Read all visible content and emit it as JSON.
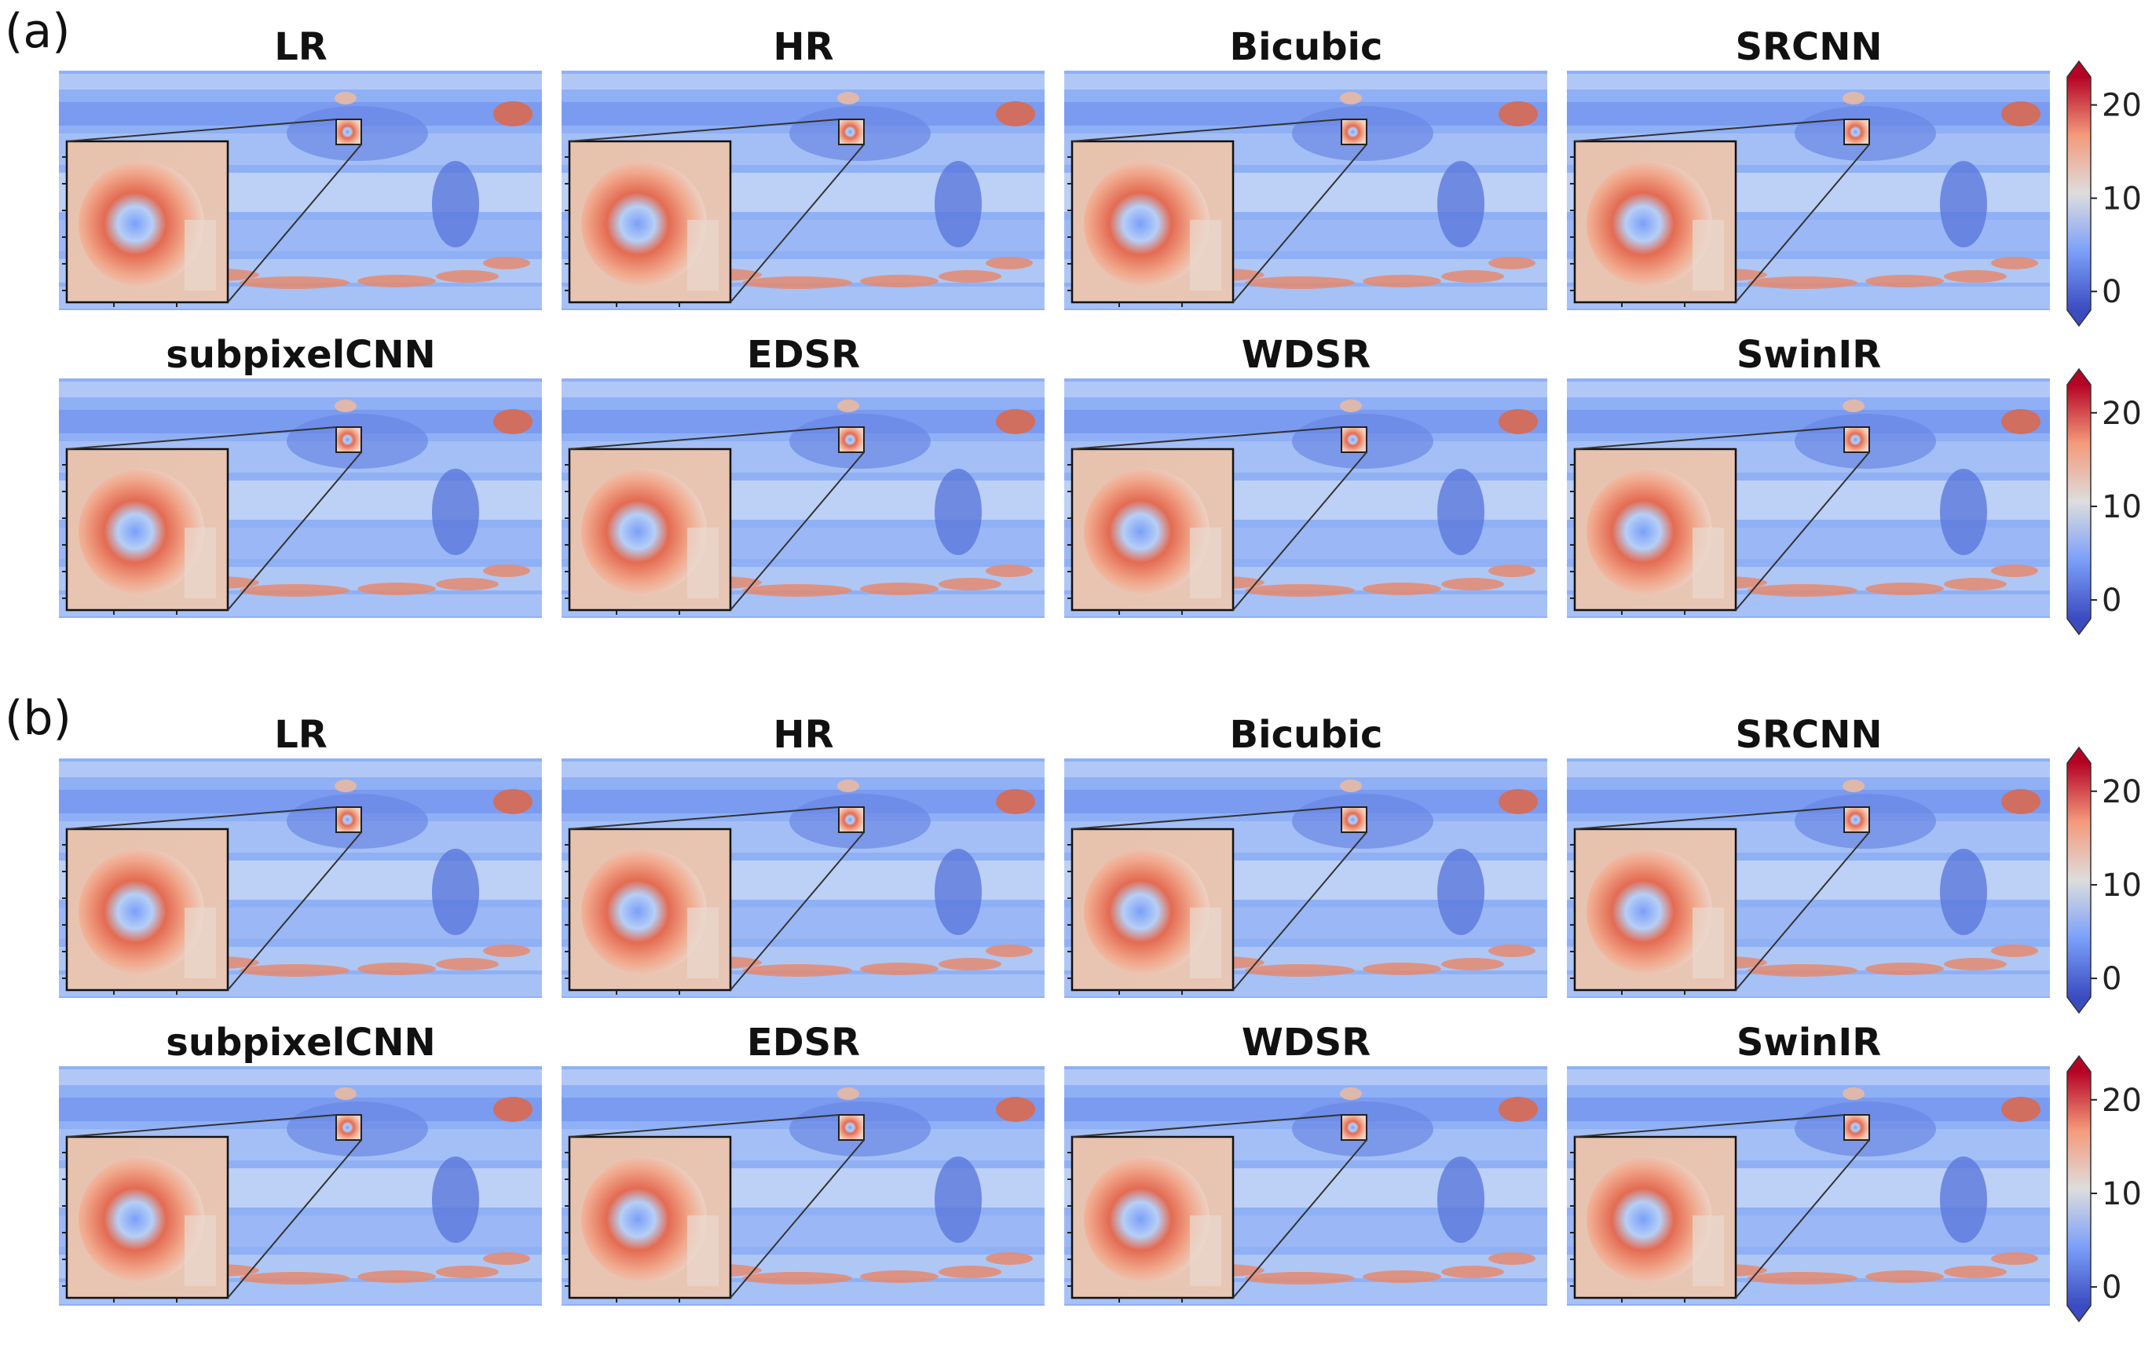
{
  "figure": {
    "panels": [
      {
        "label": "(a)",
        "rows": [
          [
            "LR",
            "HR",
            "Bicubic",
            "SRCNN"
          ],
          [
            "subpixelCNN",
            "EDSR",
            "WDSR",
            "SwinIR"
          ]
        ]
      },
      {
        "label": "(b)",
        "rows": [
          [
            "LR",
            "HR",
            "Bicubic",
            "SRCNN"
          ],
          [
            "subpixelCNN",
            "EDSR",
            "WDSR",
            "SwinIR"
          ]
        ]
      }
    ],
    "colormap": "coolwarm",
    "colors": {
      "low": "#3b4cc0",
      "mid": "#dddddd",
      "high": "#b40426"
    }
  },
  "chart_data": {
    "type": "heatmap",
    "description_free": true,
    "colorbar": {
      "ticks": [
        "0",
        "10",
        "20"
      ],
      "range": [
        -2,
        23
      ],
      "extend": "both"
    },
    "zoom_inset": "top-left"
  }
}
